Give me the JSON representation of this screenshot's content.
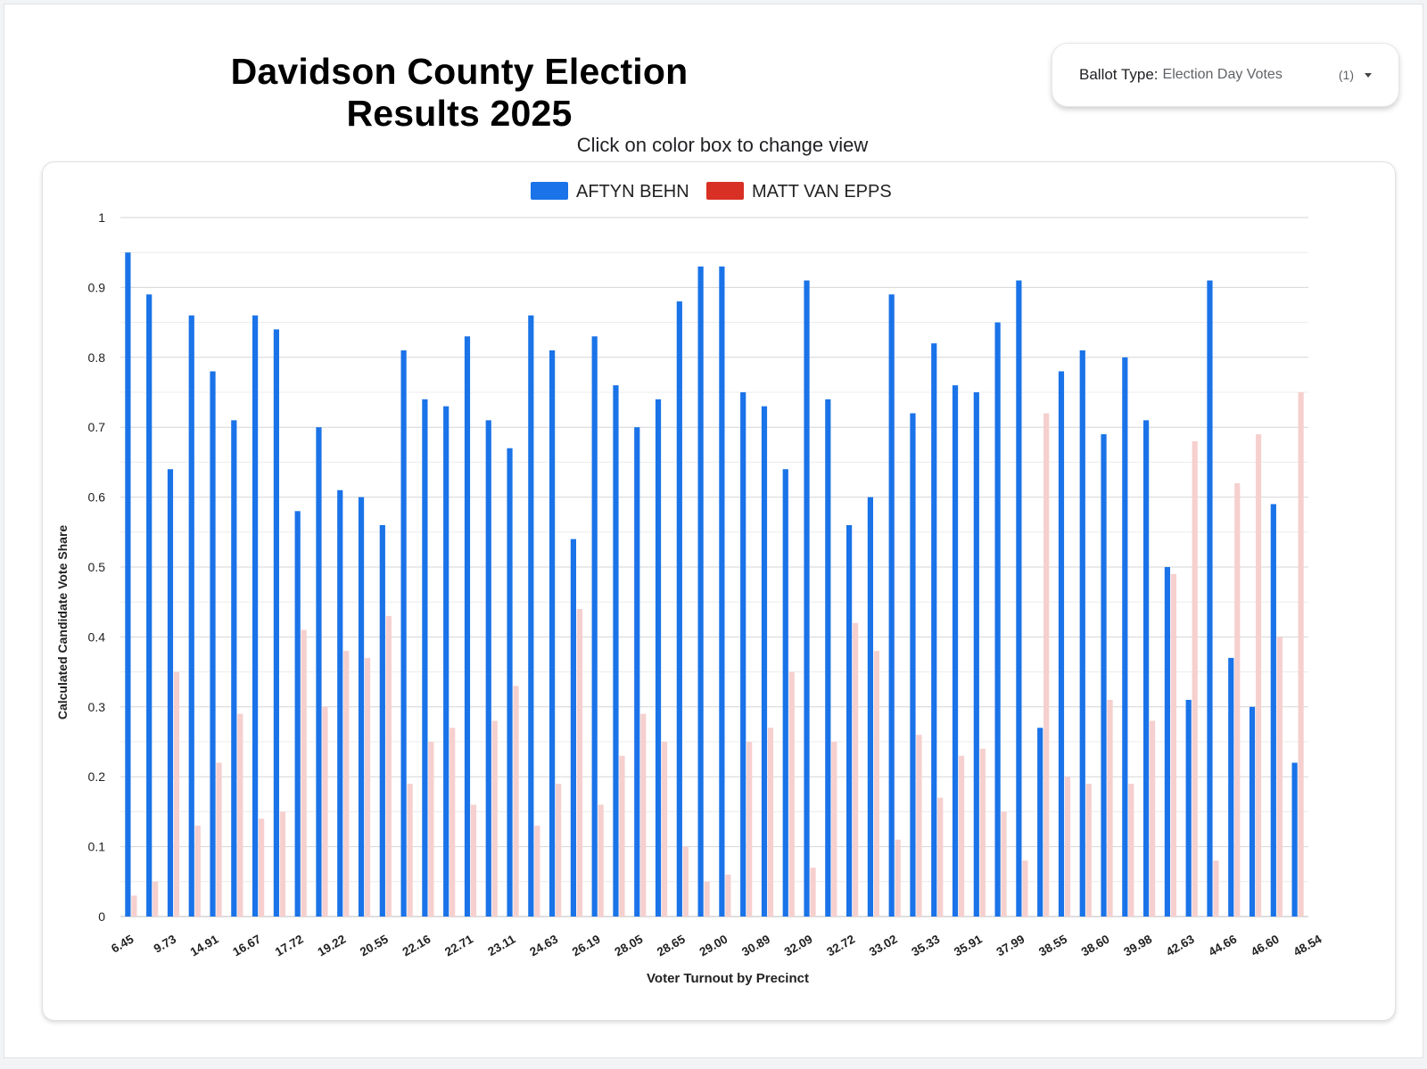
{
  "header": {
    "title": "Davidson County Election Results 2025"
  },
  "ballot_filter": {
    "label": "Ballot Type:",
    "value": "Election Day Votes",
    "count": "(1)"
  },
  "hint": "Click on color box to change view",
  "colors": {
    "behn": "#1a73e8",
    "van_epps": "#d93025",
    "van_epps_faded": "#f6d0ce"
  },
  "chart_data": {
    "type": "bar",
    "xlabel": "Voter Turnout by Precinct",
    "ylabel": "Calculated Candidate Vote Share",
    "ylim": [
      0,
      1
    ],
    "yticks": [
      "0",
      "0.1",
      "0.2",
      "0.3",
      "0.4",
      "0.5",
      "0.6",
      "0.7",
      "0.8",
      "0.9",
      "1"
    ],
    "legend": "top",
    "grid": true,
    "x_tick_labels": [
      "6.45",
      "9.73",
      "14.91",
      "16.67",
      "17.72",
      "19.22",
      "20.55",
      "22.16",
      "22.71",
      "23.11",
      "24.63",
      "26.19",
      "28.05",
      "28.65",
      "29.00",
      "30.89",
      "32.09",
      "32.72",
      "33.02",
      "35.33",
      "35.91",
      "37.99",
      "38.55",
      "38.60",
      "39.98",
      "42.63",
      "44.66",
      "46.60",
      "48.54"
    ],
    "series": [
      {
        "name": "AFTYN BEHN",
        "values": [
          0.95,
          0.89,
          0.64,
          0.86,
          0.78,
          0.71,
          0.86,
          0.84,
          0.58,
          0.7,
          0.61,
          0.6,
          0.56,
          0.81,
          0.74,
          0.73,
          0.83,
          0.71,
          0.67,
          0.86,
          0.81,
          0.54,
          0.83,
          0.76,
          0.7,
          0.74,
          0.88,
          0.93,
          0.93,
          0.75,
          0.73,
          0.64,
          0.91,
          0.74,
          0.56,
          0.6,
          0.89,
          0.72,
          0.82,
          0.76,
          0.75,
          0.85,
          0.91,
          0.27,
          0.78,
          0.81,
          0.69,
          0.8,
          0.71,
          0.5,
          0.31,
          0.91,
          0.37,
          0.3,
          0.59,
          0.22
        ]
      },
      {
        "name": "MATT VAN EPPS",
        "values": [
          0.03,
          0.05,
          0.35,
          0.13,
          0.22,
          0.29,
          0.14,
          0.15,
          0.41,
          0.3,
          0.38,
          0.37,
          0.43,
          0.19,
          0.25,
          0.27,
          0.16,
          0.28,
          0.33,
          0.13,
          0.19,
          0.44,
          0.16,
          0.23,
          0.29,
          0.25,
          0.1,
          0.05,
          0.06,
          0.25,
          0.27,
          0.35,
          0.07,
          0.25,
          0.42,
          0.38,
          0.11,
          0.26,
          0.17,
          0.23,
          0.24,
          0.15,
          0.08,
          0.72,
          0.2,
          0.19,
          0.31,
          0.19,
          0.28,
          0.49,
          0.68,
          0.08,
          0.62,
          0.69,
          0.4,
          0.75
        ]
      }
    ]
  }
}
